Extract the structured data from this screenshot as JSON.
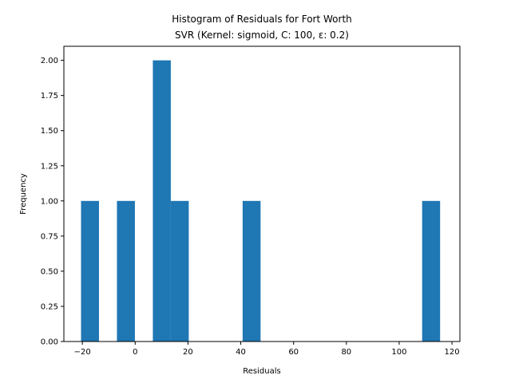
{
  "chart_data": {
    "type": "bar",
    "title_line1": "Histogram of Residuals for Fort Worth",
    "title_line2": "SVR (Kernel: sigmoid, C: 100, ε: 0.2)",
    "xlabel": "Residuals",
    "ylabel": "Frequency",
    "xlim": [
      -27.0,
      123.0
    ],
    "ylim": [
      0,
      2.1
    ],
    "xticks": [
      -20,
      0,
      20,
      40,
      60,
      80,
      100,
      120
    ],
    "xtick_labels": [
      "−20",
      "0",
      "20",
      "40",
      "60",
      "80",
      "100",
      "120"
    ],
    "yticks": [
      0,
      0.25,
      0.5,
      0.75,
      1.0,
      1.25,
      1.5,
      1.75,
      2.0
    ],
    "ytick_labels": [
      "0.00",
      "0.25",
      "0.50",
      "0.75",
      "1.00",
      "1.25",
      "1.50",
      "1.75",
      "2.00"
    ],
    "bin_edges": [
      -20.5,
      -13.7,
      -6.9,
      -0.1,
      6.7,
      13.5,
      20.3,
      27.1,
      33.9,
      40.7,
      47.5,
      54.3,
      61.1,
      67.9,
      74.7,
      81.5,
      88.3,
      95.1,
      101.9,
      108.7,
      115.5
    ],
    "counts": [
      1,
      0,
      1,
      0,
      2,
      1,
      0,
      0,
      0,
      1,
      0,
      0,
      0,
      0,
      0,
      0,
      0,
      0,
      0,
      1
    ],
    "bar_color": "#1f77b4",
    "grid": false
  }
}
